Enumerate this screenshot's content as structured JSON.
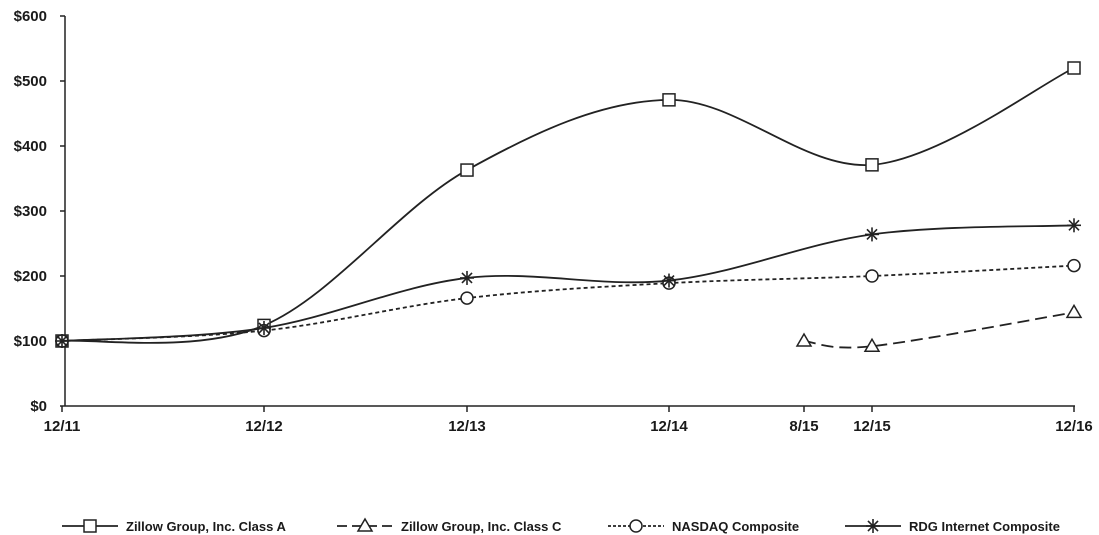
{
  "chart_data": {
    "type": "line",
    "title": "",
    "xlabel": "",
    "ylabel": "",
    "ylim": [
      0,
      600
    ],
    "y_ticks": [
      {
        "value": 0,
        "label": "$0"
      },
      {
        "value": 100,
        "label": "$100"
      },
      {
        "value": 200,
        "label": "$200"
      },
      {
        "value": 300,
        "label": "$300"
      },
      {
        "value": 400,
        "label": "$400"
      },
      {
        "value": 500,
        "label": "$500"
      },
      {
        "value": 600,
        "label": "$600"
      }
    ],
    "x_ticks": [
      "12/11",
      "12/12",
      "12/13",
      "12/14",
      "8/15",
      "12/15",
      "12/16"
    ],
    "grid": false,
    "legend_position": "bottom",
    "series": [
      {
        "name": "Zillow Group, Inc. Class A",
        "marker": "square",
        "line_style": "solid",
        "color": "#222222",
        "points": [
          {
            "x": "12/11",
            "y": 100
          },
          {
            "x": "12/12",
            "y": 124
          },
          {
            "x": "12/13",
            "y": 363
          },
          {
            "x": "12/14",
            "y": 471
          },
          {
            "x": "12/15",
            "y": 371
          },
          {
            "x": "12/16",
            "y": 520
          }
        ]
      },
      {
        "name": "Zillow Group, Inc. Class C",
        "marker": "triangle",
        "line_style": "dashed",
        "color": "#222222",
        "points": [
          {
            "x": "8/15",
            "y": 100
          },
          {
            "x": "12/15",
            "y": 92
          },
          {
            "x": "12/16",
            "y": 144
          }
        ]
      },
      {
        "name": "NASDAQ Composite",
        "marker": "circle",
        "line_style": "dotted",
        "color": "#222222",
        "points": [
          {
            "x": "12/11",
            "y": 100
          },
          {
            "x": "12/12",
            "y": 116
          },
          {
            "x": "12/13",
            "y": 166
          },
          {
            "x": "12/14",
            "y": 189
          },
          {
            "x": "12/15",
            "y": 200
          },
          {
            "x": "12/16",
            "y": 216
          }
        ]
      },
      {
        "name": "RDG Internet Composite",
        "marker": "star",
        "line_style": "solid",
        "color": "#222222",
        "points": [
          {
            "x": "12/11",
            "y": 100
          },
          {
            "x": "12/12",
            "y": 120
          },
          {
            "x": "12/13",
            "y": 197
          },
          {
            "x": "12/14",
            "y": 193
          },
          {
            "x": "12/15",
            "y": 264
          },
          {
            "x": "12/16",
            "y": 278
          }
        ]
      }
    ]
  }
}
